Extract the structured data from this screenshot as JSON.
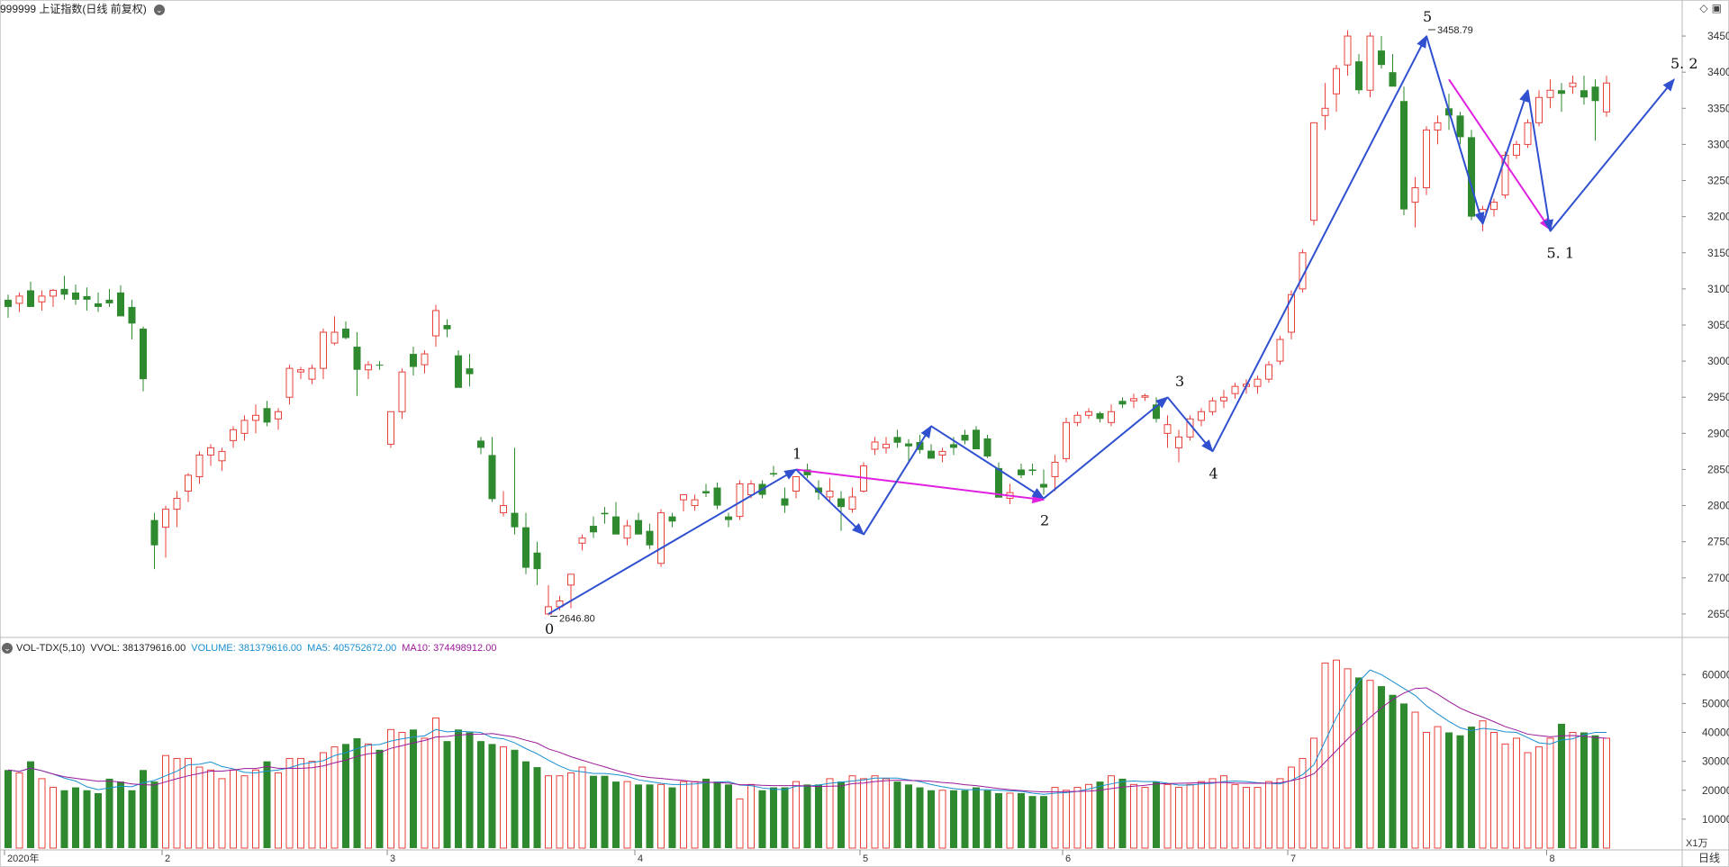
{
  "header": {
    "title": "999999 上证指数(日线 前复权)",
    "top_right_icons": [
      "diamond-icon",
      "panel-icon"
    ]
  },
  "volume_header": {
    "indicator": "VOL-TDX(5,10)",
    "vvol": "VVOL: 381379616.00",
    "volume": "VOLUME: 381379616.00",
    "ma5": "MA5: 405752672.00",
    "ma10": "MA10: 374498912.00",
    "unit": "X1万"
  },
  "colors": {
    "up": "#e8403b",
    "down": "#2f8a2f",
    "wave_blue": "#3050d0",
    "wave_magenta": "#e020e0",
    "ma5": "#1a8fd0",
    "ma10": "#9a1a9a"
  },
  "chart_data": {
    "type": "candlestick",
    "price_axis": {
      "ticks": [
        2650,
        2700,
        2750,
        2800,
        2850,
        2900,
        2950,
        3000,
        3050,
        3100,
        3150,
        3200,
        3250,
        3300,
        3350,
        3400,
        3450
      ],
      "ylim": [
        2620,
        3475
      ]
    },
    "volume_axis": {
      "ticks": [
        10000,
        20000,
        30000,
        40000,
        50000,
        60000
      ],
      "ylim": [
        0,
        66000
      ],
      "unit": "X1万"
    },
    "x_axis": {
      "labels": [
        {
          "label": "2020年",
          "index": 0
        },
        {
          "label": "2",
          "index": 14
        },
        {
          "label": "3",
          "index": 34
        },
        {
          "label": "4",
          "index": 56
        },
        {
          "label": "5",
          "index": 76
        },
        {
          "label": "6",
          "index": 94
        },
        {
          "label": "7",
          "index": 114
        },
        {
          "label": "8",
          "index": 137
        }
      ],
      "period_label": "日线"
    },
    "candles": [
      [
        3085,
        3092,
        3060,
        3075,
        27000
      ],
      [
        3080,
        3095,
        3068,
        3090,
        26000
      ],
      [
        3098,
        3110,
        3080,
        3075,
        30000
      ],
      [
        3082,
        3098,
        3070,
        3090,
        24000
      ],
      [
        3090,
        3100,
        3075,
        3098,
        21000
      ],
      [
        3100,
        3118,
        3085,
        3092,
        20000
      ],
      [
        3095,
        3106,
        3078,
        3085,
        21000
      ],
      [
        3090,
        3102,
        3070,
        3085,
        20000
      ],
      [
        3080,
        3095,
        3068,
        3075,
        19000
      ],
      [
        3085,
        3100,
        3075,
        3080,
        24000
      ],
      [
        3095,
        3105,
        3065,
        3062,
        23000
      ],
      [
        3075,
        3085,
        3030,
        3052,
        20000
      ],
      [
        3045,
        3048,
        2958,
        2975,
        27000
      ],
      [
        2780,
        2790,
        2712,
        2745,
        23000
      ],
      [
        2770,
        2800,
        2728,
        2795,
        32000
      ],
      [
        2795,
        2820,
        2770,
        2810,
        31000
      ],
      [
        2820,
        2845,
        2805,
        2842,
        31000
      ],
      [
        2840,
        2875,
        2830,
        2870,
        28000
      ],
      [
        2870,
        2885,
        2855,
        2880,
        27000
      ],
      [
        2862,
        2880,
        2848,
        2875,
        24000
      ],
      [
        2890,
        2910,
        2880,
        2905,
        27000
      ],
      [
        2900,
        2925,
        2890,
        2918,
        25000
      ],
      [
        2918,
        2940,
        2900,
        2925,
        27000
      ],
      [
        2935,
        2945,
        2910,
        2915,
        30000
      ],
      [
        2920,
        2935,
        2905,
        2930,
        26000
      ],
      [
        2950,
        2995,
        2940,
        2990,
        31000
      ],
      [
        2985,
        2992,
        2975,
        2988,
        31000
      ],
      [
        2975,
        2995,
        2968,
        2990,
        30000
      ],
      [
        2990,
        3045,
        2975,
        3040,
        33000
      ],
      [
        3025,
        3062,
        3022,
        3040,
        35000
      ],
      [
        3045,
        3055,
        3030,
        3032,
        36000
      ],
      [
        3020,
        3040,
        2952,
        2988,
        38000
      ],
      [
        2988,
        3000,
        2975,
        2995,
        36000
      ],
      [
        2995,
        3000,
        2988,
        2994,
        34000
      ],
      [
        2885,
        2930,
        2880,
        2930,
        41000
      ],
      [
        2930,
        2990,
        2920,
        2985,
        40000
      ],
      [
        3010,
        3020,
        2980,
        2992,
        41000
      ],
      [
        2995,
        3015,
        2983,
        3010,
        38000
      ],
      [
        3035,
        3078,
        3020,
        3070,
        45000
      ],
      [
        3050,
        3058,
        3033,
        3044,
        37000
      ],
      [
        3008,
        3015,
        2964,
        2963,
        41000
      ],
      [
        2990,
        3010,
        2965,
        2982,
        40000
      ],
      [
        2890,
        2895,
        2871,
        2880,
        37000
      ],
      [
        2870,
        2895,
        2805,
        2809,
        36000
      ],
      [
        2790,
        2820,
        2785,
        2800,
        35000
      ],
      [
        2790,
        2880,
        2760,
        2770,
        34000
      ],
      [
        2770,
        2790,
        2705,
        2714,
        30000
      ],
      [
        2735,
        2750,
        2690,
        2712,
        28000
      ],
      [
        2650,
        2690,
        2648,
        2660,
        25000
      ],
      [
        2660,
        2675,
        2655,
        2668,
        25000
      ],
      [
        2690,
        2705,
        2658,
        2705,
        26000
      ],
      [
        2748,
        2760,
        2738,
        2755,
        28000
      ],
      [
        2772,
        2785,
        2755,
        2763,
        25000
      ],
      [
        2790,
        2798,
        2775,
        2788,
        25000
      ],
      [
        2785,
        2805,
        2765,
        2760,
        23000
      ],
      [
        2755,
        2780,
        2745,
        2772,
        23000
      ],
      [
        2780,
        2790,
        2760,
        2760,
        22000
      ],
      [
        2765,
        2775,
        2740,
        2745,
        22000
      ],
      [
        2720,
        2795,
        2715,
        2790,
        22000
      ],
      [
        2785,
        2790,
        2770,
        2778,
        21000
      ],
      [
        2808,
        2815,
        2792,
        2815,
        23000
      ],
      [
        2800,
        2815,
        2793,
        2808,
        23000
      ],
      [
        2820,
        2830,
        2812,
        2817,
        24000
      ],
      [
        2825,
        2832,
        2795,
        2800,
        23000
      ],
      [
        2785,
        2790,
        2770,
        2780,
        22000
      ],
      [
        2785,
        2835,
        2780,
        2830,
        17000
      ],
      [
        2815,
        2835,
        2810,
        2830,
        22000
      ],
      [
        2830,
        2835,
        2810,
        2815,
        20000
      ],
      [
        2845,
        2855,
        2840,
        2843,
        21000
      ],
      [
        2810,
        2825,
        2790,
        2800,
        21000
      ],
      [
        2820,
        2840,
        2810,
        2840,
        23000
      ],
      [
        2850,
        2858,
        2838,
        2842,
        22000
      ],
      [
        2825,
        2835,
        2808,
        2818,
        22000
      ],
      [
        2812,
        2838,
        2805,
        2820,
        24000
      ],
      [
        2810,
        2820,
        2765,
        2798,
        23000
      ],
      [
        2795,
        2825,
        2790,
        2812,
        25000
      ],
      [
        2820,
        2860,
        2818,
        2855,
        24000
      ],
      [
        2878,
        2895,
        2870,
        2888,
        25000
      ],
      [
        2880,
        2895,
        2872,
        2885,
        24000
      ],
      [
        2895,
        2905,
        2880,
        2887,
        23000
      ],
      [
        2886,
        2892,
        2860,
        2882,
        22000
      ],
      [
        2888,
        2898,
        2872,
        2877,
        21000
      ],
      [
        2876,
        2885,
        2865,
        2865,
        20000
      ],
      [
        2870,
        2880,
        2860,
        2875,
        20000
      ],
      [
        2885,
        2895,
        2870,
        2880,
        20000
      ],
      [
        2898,
        2905,
        2885,
        2890,
        20000
      ],
      [
        2905,
        2910,
        2880,
        2878,
        21000
      ],
      [
        2893,
        2898,
        2866,
        2868,
        20000
      ],
      [
        2852,
        2860,
        2812,
        2811,
        19000
      ],
      [
        2810,
        2830,
        2802,
        2818,
        19000
      ],
      [
        2850,
        2858,
        2838,
        2842,
        19000
      ],
      [
        2850,
        2858,
        2842,
        2848,
        18000
      ],
      [
        2830,
        2850,
        2815,
        2825,
        18000
      ],
      [
        2840,
        2870,
        2820,
        2860,
        21000
      ],
      [
        2865,
        2922,
        2860,
        2915,
        20000
      ],
      [
        2915,
        2930,
        2910,
        2925,
        21000
      ],
      [
        2925,
        2935,
        2920,
        2930,
        22000
      ],
      [
        2928,
        2930,
        2915,
        2920,
        23000
      ],
      [
        2915,
        2940,
        2910,
        2930,
        25000
      ],
      [
        2945,
        2950,
        2935,
        2940,
        24000
      ],
      [
        2945,
        2955,
        2935,
        2948,
        22000
      ],
      [
        2950,
        2955,
        2945,
        2952,
        21000
      ],
      [
        2940,
        2950,
        2915,
        2920,
        23000
      ],
      [
        2900,
        2925,
        2880,
        2912,
        22000
      ],
      [
        2880,
        2905,
        2860,
        2895,
        21000
      ],
      [
        2895,
        2925,
        2890,
        2920,
        22000
      ],
      [
        2918,
        2935,
        2910,
        2930,
        23000
      ],
      [
        2930,
        2950,
        2925,
        2945,
        24000
      ],
      [
        2945,
        2960,
        2935,
        2950,
        25000
      ],
      [
        2955,
        2970,
        2948,
        2965,
        22000
      ],
      [
        2965,
        2975,
        2955,
        2968,
        21000
      ],
      [
        2965,
        2980,
        2955,
        2975,
        21000
      ],
      [
        2975,
        3000,
        2970,
        2995,
        23000
      ],
      [
        3000,
        3035,
        2995,
        3030,
        24000
      ],
      [
        3040,
        3098,
        3030,
        3092,
        28000
      ],
      [
        3100,
        3155,
        3095,
        3150,
        31000
      ],
      [
        3195,
        3330,
        3188,
        3330,
        38000
      ],
      [
        3340,
        3385,
        3320,
        3350,
        64000
      ],
      [
        3370,
        3410,
        3345,
        3405,
        65000
      ],
      [
        3410,
        3458,
        3395,
        3450,
        62000
      ],
      [
        3415,
        3425,
        3370,
        3375,
        59000
      ],
      [
        3375,
        3455,
        3365,
        3450,
        58000
      ],
      [
        3430,
        3450,
        3405,
        3410,
        56000
      ],
      [
        3400,
        3425,
        3382,
        3380,
        53000
      ],
      [
        3360,
        3380,
        3202,
        3210,
        50000
      ],
      [
        3220,
        3255,
        3185,
        3240,
        47000
      ],
      [
        3240,
        3325,
        3230,
        3320,
        40000
      ],
      [
        3320,
        3340,
        3300,
        3330,
        42000
      ],
      [
        3350,
        3370,
        3320,
        3340,
        40000
      ],
      [
        3340,
        3345,
        3300,
        3310,
        39000
      ],
      [
        3310,
        3320,
        3195,
        3200,
        42000
      ],
      [
        3200,
        3215,
        3180,
        3210,
        44000
      ],
      [
        3210,
        3225,
        3200,
        3220,
        40000
      ],
      [
        3230,
        3290,
        3225,
        3285,
        36000
      ],
      [
        3285,
        3305,
        3280,
        3300,
        38000
      ],
      [
        3300,
        3335,
        3295,
        3330,
        33000
      ],
      [
        3330,
        3375,
        3325,
        3365,
        35000
      ],
      [
        3365,
        3390,
        3350,
        3375,
        38000
      ],
      [
        3375,
        3385,
        3345,
        3370,
        43000
      ],
      [
        3380,
        3395,
        3370,
        3385,
        40000
      ],
      [
        3375,
        3395,
        3355,
        3365,
        40000
      ],
      [
        3380,
        3390,
        3305,
        3360,
        39000
      ],
      [
        3345,
        3395,
        3338,
        3385,
        38000
      ]
    ],
    "price_annotations": [
      {
        "label": "3458.79",
        "index": 126,
        "price": 3458.79,
        "side": "top"
      },
      {
        "label": "2646.80",
        "index": 48,
        "price": 2646.8,
        "side": "bottom"
      }
    ],
    "wave_labels": [
      {
        "label": "0",
        "index": 48,
        "price": 2640,
        "pos": "below"
      },
      {
        "label": "1",
        "index": 70,
        "price": 2860,
        "pos": "above"
      },
      {
        "label": "2",
        "index": 92,
        "price": 2790,
        "pos": "below"
      },
      {
        "label": "3",
        "index": 104,
        "price": 2960,
        "pos": "above"
      },
      {
        "label": "4",
        "index": 107,
        "price": 2855,
        "pos": "below"
      },
      {
        "label": "5",
        "index": 126,
        "price": 3465,
        "pos": "above"
      },
      {
        "label": "5. 1",
        "index": 137,
        "price": 3160,
        "pos": "below"
      },
      {
        "label": "5. 2",
        "index": 148,
        "price": 3400,
        "pos": "above"
      }
    ],
    "wave_lines_blue": [
      [
        [
          48,
          2650
        ],
        [
          70,
          2850
        ]
      ],
      [
        [
          70,
          2850
        ],
        [
          76,
          2760
        ]
      ],
      [
        [
          76,
          2760
        ],
        [
          82,
          2910
        ]
      ],
      [
        [
          82,
          2910
        ],
        [
          92,
          2810
        ]
      ],
      [
        [
          92,
          2810
        ],
        [
          103,
          2950
        ]
      ],
      [
        [
          103,
          2950
        ],
        [
          107,
          2875
        ]
      ],
      [
        [
          107,
          2875
        ],
        [
          126,
          3450
        ]
      ],
      [
        [
          126,
          3450
        ],
        [
          131,
          3190
        ]
      ],
      [
        [
          131,
          3190
        ],
        [
          135,
          3375
        ]
      ],
      [
        [
          135,
          3375
        ],
        [
          137,
          3180
        ]
      ],
      [
        [
          137,
          3180
        ],
        [
          148,
          3390
        ]
      ]
    ],
    "wave_lines_magenta": [
      [
        [
          70,
          2850
        ],
        [
          92,
          2808
        ]
      ],
      [
        [
          128,
          3390
        ],
        [
          137,
          3182
        ]
      ]
    ]
  }
}
